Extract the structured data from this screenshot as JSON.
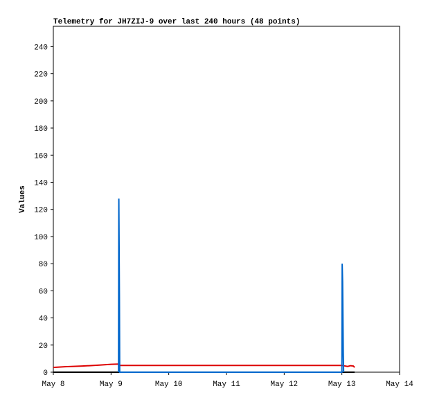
{
  "chart_data": {
    "type": "line",
    "title": "Telemetry for JH7ZIJ-9 over last 240 hours (48 points)",
    "y_label": "Values",
    "xlim": [
      8,
      14
    ],
    "xticks": [
      {
        "value": 8,
        "label": "May 8"
      },
      {
        "value": 9,
        "label": "May 9"
      },
      {
        "value": 10,
        "label": "May 10"
      },
      {
        "value": 11,
        "label": "May 11"
      },
      {
        "value": 12,
        "label": "May 12"
      },
      {
        "value": 13,
        "label": "May 13"
      },
      {
        "value": 14,
        "label": "May 14"
      }
    ],
    "ylim": [
      0,
      255
    ],
    "yticks": [
      0,
      20,
      40,
      60,
      80,
      100,
      120,
      140,
      160,
      180,
      200,
      220,
      240
    ],
    "series": [
      {
        "color": "#000000",
        "x": [
          8.0,
          13.22
        ],
        "values": [
          0,
          0
        ]
      },
      {
        "color": "#dd0000",
        "x": [
          8.0,
          8.2,
          8.5,
          8.8,
          9.0,
          9.13,
          9.15,
          13.0,
          13.1,
          13.15,
          13.2,
          13.22
        ],
        "values": [
          3.5,
          4,
          4.5,
          5.2,
          5.8,
          6,
          5,
          5,
          4.2,
          4.8,
          4.5,
          3.5
        ]
      },
      {
        "color": "#0066cc",
        "x": [
          9.13,
          9.135,
          9.145,
          9.15,
          13.0,
          13.005,
          13.012,
          13.018,
          13.024,
          13.03
        ],
        "values": [
          0,
          128,
          56,
          0,
          0,
          80,
          67,
          40,
          14,
          0
        ]
      }
    ]
  }
}
